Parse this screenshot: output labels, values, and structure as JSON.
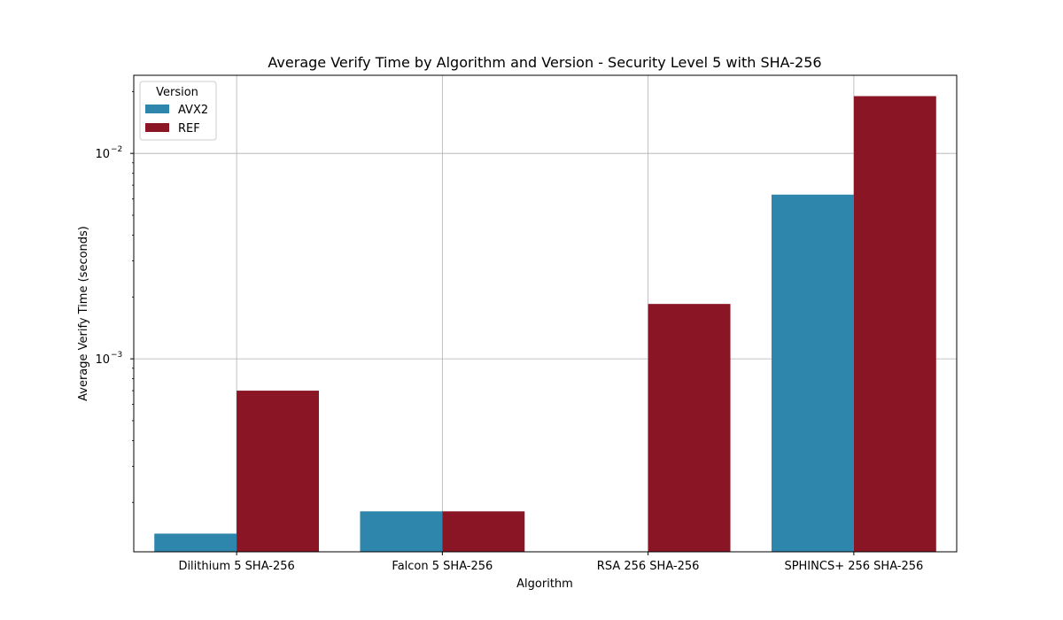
{
  "chart_data": {
    "type": "bar",
    "title": "Average Verify Time by Algorithm and Version - Security Level 5 with SHA-256",
    "xlabel": "Algorithm",
    "ylabel": "Average Verify Time (seconds)",
    "yscale": "log",
    "ylim": [
      0.000115,
      0.024
    ],
    "y_ticks": [
      {
        "value": 0.001,
        "base": "10",
        "exp": "−3"
      },
      {
        "value": 0.01,
        "base": "10",
        "exp": "−2"
      }
    ],
    "grid": true,
    "categories": [
      "Dilithium 5 SHA-256",
      "Falcon 5 SHA-256",
      "RSA 256 SHA-256",
      "SPHINCS+ 256 SHA-256"
    ],
    "series": [
      {
        "name": "AVX2",
        "color": "#2e86ad",
        "values": [
          0.000141,
          0.000181,
          null,
          0.0063
        ]
      },
      {
        "name": "REF",
        "color": "#8a1524",
        "values": [
          0.0007,
          0.000181,
          0.00185,
          0.019
        ]
      }
    ],
    "legend": {
      "title": "Version",
      "placement": "top-left"
    }
  }
}
